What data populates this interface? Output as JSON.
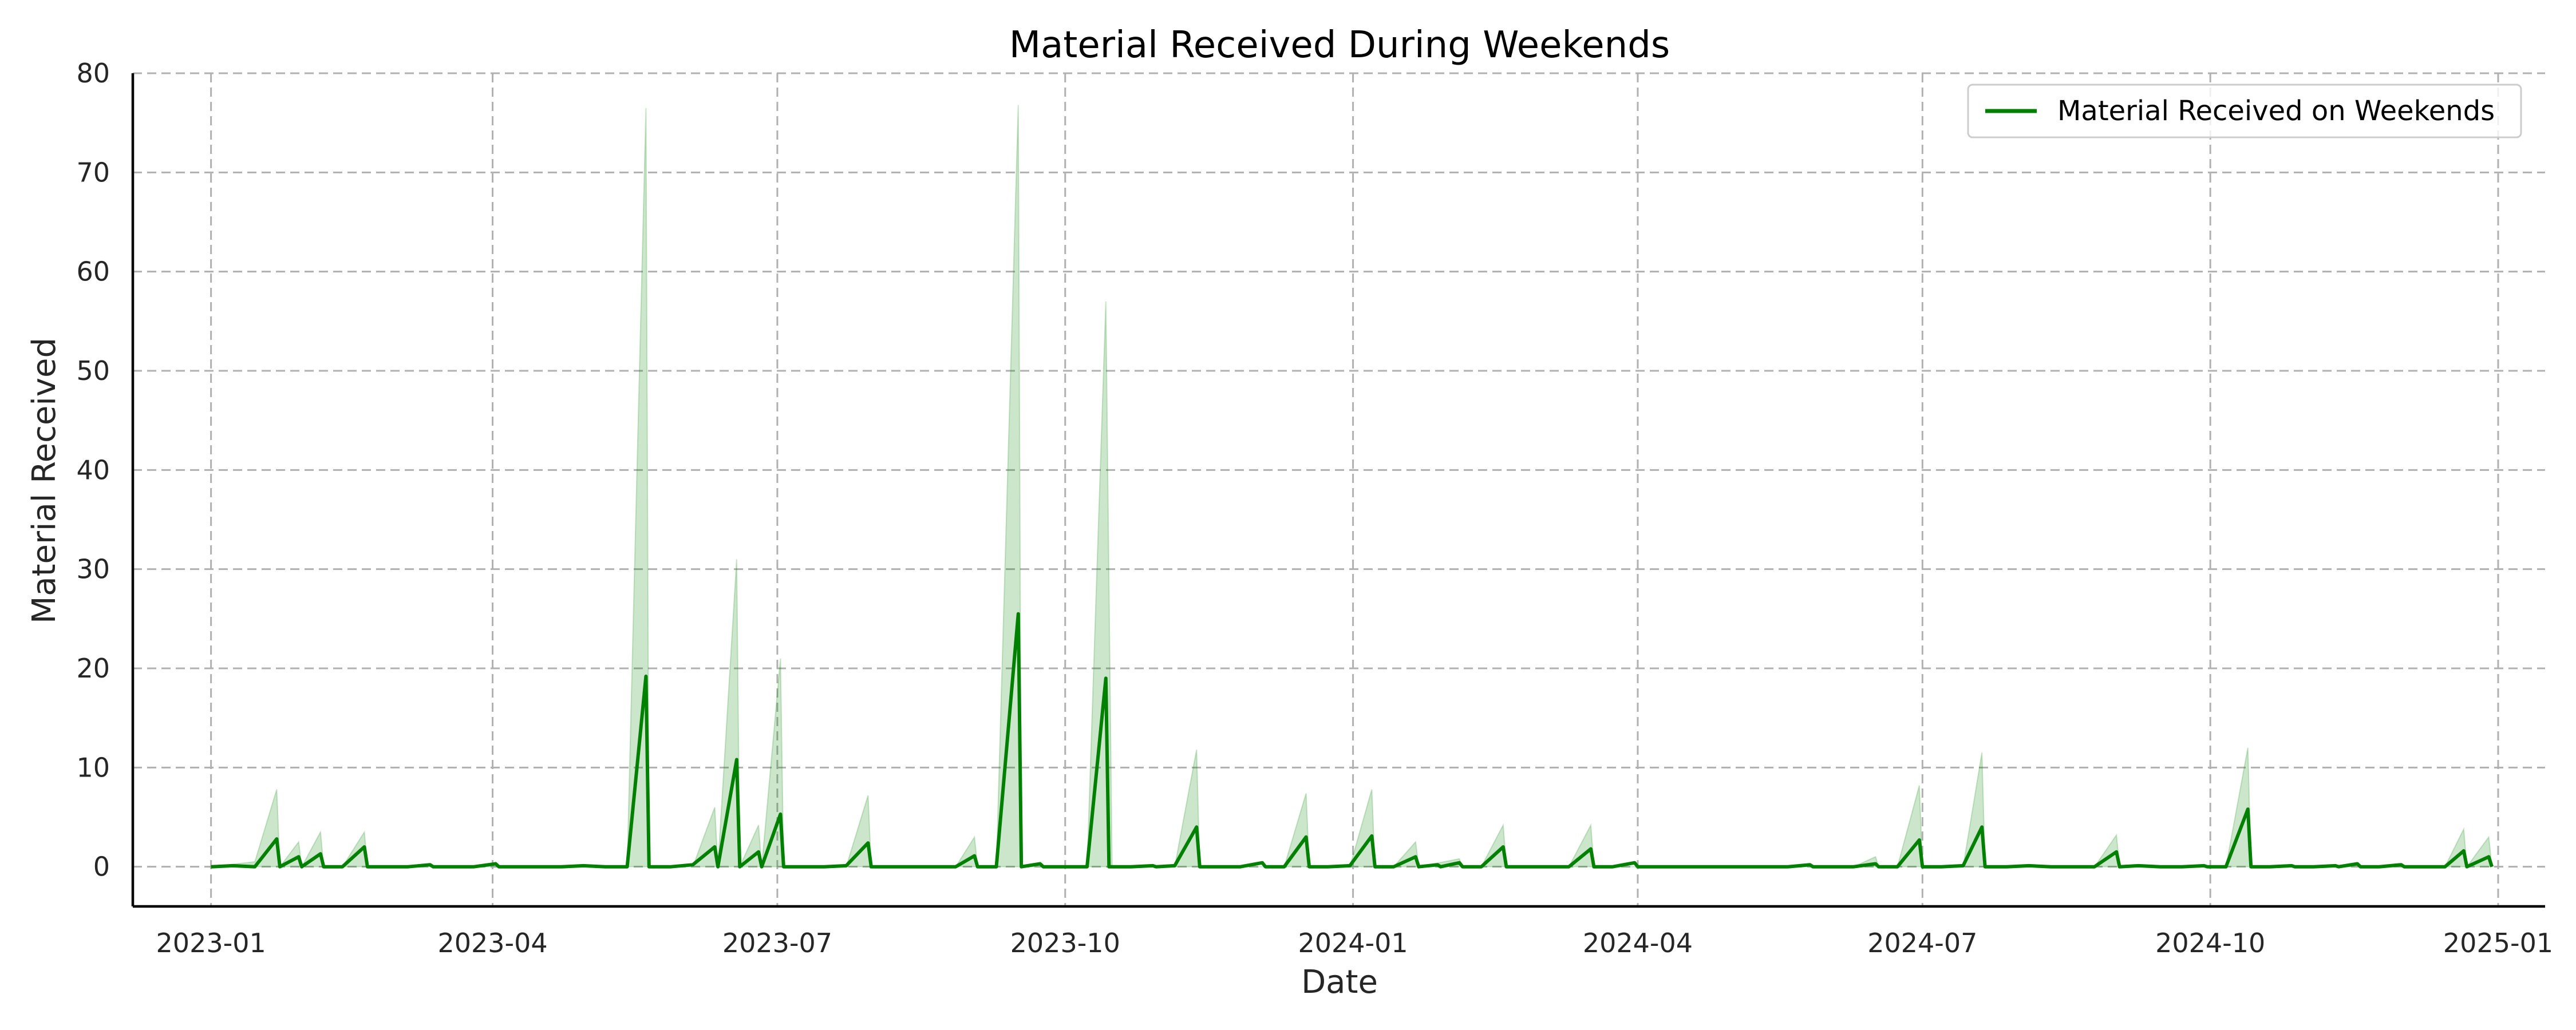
{
  "chart_data": {
    "type": "line",
    "title": "Material Received During Weekends",
    "xlabel": "Date",
    "ylabel": "Material Received",
    "xlim": [
      "2022-12-07",
      "2025-01-16"
    ],
    "ylim": [
      -4,
      80
    ],
    "x_ticks": [
      "2023-01",
      "2023-04",
      "2023-07",
      "2023-10",
      "2024-01",
      "2024-04",
      "2024-07",
      "2024-10",
      "2025-01"
    ],
    "y_ticks": [
      0,
      10,
      20,
      30,
      40,
      50,
      60,
      70,
      80
    ],
    "grid": true,
    "legend": {
      "position": "top-right"
    },
    "colors": {
      "line": "#008000",
      "band": "#008000"
    },
    "series": [
      {
        "name": "Material Received on Weekends",
        "points": [
          [
            "2023-01-01",
            0
          ],
          [
            "2023-01-08",
            0.1
          ],
          [
            "2023-01-15",
            0
          ],
          [
            "2023-01-22",
            2.8
          ],
          [
            "2023-01-23",
            0
          ],
          [
            "2023-01-29",
            1.0
          ],
          [
            "2023-01-30",
            0
          ],
          [
            "2023-02-05",
            1.3
          ],
          [
            "2023-02-06",
            0
          ],
          [
            "2023-02-12",
            0
          ],
          [
            "2023-02-19",
            2.0
          ],
          [
            "2023-02-20",
            0
          ],
          [
            "2023-02-26",
            0
          ],
          [
            "2023-03-05",
            0
          ],
          [
            "2023-03-12",
            0.2
          ],
          [
            "2023-03-13",
            0
          ],
          [
            "2023-03-19",
            0
          ],
          [
            "2023-03-26",
            0
          ],
          [
            "2023-04-02",
            0.3
          ],
          [
            "2023-04-03",
            0
          ],
          [
            "2023-04-09",
            0
          ],
          [
            "2023-04-16",
            0
          ],
          [
            "2023-04-23",
            0
          ],
          [
            "2023-04-30",
            0.1
          ],
          [
            "2023-05-07",
            0
          ],
          [
            "2023-05-14",
            0
          ],
          [
            "2023-05-20",
            19.2
          ],
          [
            "2023-05-21",
            0
          ],
          [
            "2023-05-28",
            0
          ],
          [
            "2023-06-04",
            0.2
          ],
          [
            "2023-06-11",
            2.0
          ],
          [
            "2023-06-12",
            0
          ],
          [
            "2023-06-18",
            10.8
          ],
          [
            "2023-06-19",
            0
          ],
          [
            "2023-06-25",
            1.5
          ],
          [
            "2023-06-26",
            0
          ],
          [
            "2023-07-02",
            5.3
          ],
          [
            "2023-07-03",
            0
          ],
          [
            "2023-07-09",
            0
          ],
          [
            "2023-07-16",
            0
          ],
          [
            "2023-07-23",
            0.1
          ],
          [
            "2023-07-30",
            2.4
          ],
          [
            "2023-07-31",
            0
          ],
          [
            "2023-08-06",
            0
          ],
          [
            "2023-08-13",
            0
          ],
          [
            "2023-08-20",
            0
          ],
          [
            "2023-08-27",
            0
          ],
          [
            "2023-09-02",
            1.1
          ],
          [
            "2023-09-03",
            0
          ],
          [
            "2023-09-09",
            0
          ],
          [
            "2023-09-16",
            25.5
          ],
          [
            "2023-09-17",
            0
          ],
          [
            "2023-09-23",
            0.3
          ],
          [
            "2023-09-24",
            0
          ],
          [
            "2023-10-01",
            0
          ],
          [
            "2023-10-08",
            0
          ],
          [
            "2023-10-15",
            0
          ],
          [
            "2023-10-14",
            19.0
          ],
          [
            "2023-10-16",
            0
          ],
          [
            "2023-10-22",
            0
          ],
          [
            "2023-10-29",
            0.1
          ],
          [
            "2023-10-30",
            0
          ],
          [
            "2023-11-05",
            0.1
          ],
          [
            "2023-11-12",
            4.0
          ],
          [
            "2023-11-13",
            0
          ],
          [
            "2023-11-19",
            0
          ],
          [
            "2023-11-26",
            0
          ],
          [
            "2023-12-03",
            0.4
          ],
          [
            "2023-12-04",
            0
          ],
          [
            "2023-12-10",
            0
          ],
          [
            "2023-12-17",
            3.0
          ],
          [
            "2023-12-18",
            0
          ],
          [
            "2023-12-24",
            0
          ],
          [
            "2023-12-31",
            0.1
          ],
          [
            "2024-01-07",
            3.1
          ],
          [
            "2024-01-08",
            0
          ],
          [
            "2024-01-14",
            0
          ],
          [
            "2024-01-21",
            1.0
          ],
          [
            "2024-01-22",
            0
          ],
          [
            "2024-01-28",
            0.2
          ],
          [
            "2024-01-29",
            0
          ],
          [
            "2024-02-04",
            0.4
          ],
          [
            "2024-02-05",
            0
          ],
          [
            "2024-02-11",
            0
          ],
          [
            "2024-02-18",
            2.0
          ],
          [
            "2024-02-19",
            0
          ],
          [
            "2024-02-25",
            0
          ],
          [
            "2024-03-03",
            0
          ],
          [
            "2024-03-10",
            0
          ],
          [
            "2024-03-17",
            1.8
          ],
          [
            "2024-03-18",
            0
          ],
          [
            "2024-03-24",
            0
          ],
          [
            "2024-03-31",
            0.4
          ],
          [
            "2024-04-01",
            0
          ],
          [
            "2024-04-07",
            0
          ],
          [
            "2024-04-14",
            0
          ],
          [
            "2024-04-21",
            0
          ],
          [
            "2024-04-28",
            0
          ],
          [
            "2024-05-05",
            0
          ],
          [
            "2024-05-12",
            0
          ],
          [
            "2024-05-19",
            0
          ],
          [
            "2024-05-26",
            0.2
          ],
          [
            "2024-05-27",
            0
          ],
          [
            "2024-06-02",
            0
          ],
          [
            "2024-06-09",
            0
          ],
          [
            "2024-06-16",
            0.3
          ],
          [
            "2024-06-17",
            0
          ],
          [
            "2024-06-23",
            0
          ],
          [
            "2024-06-30",
            2.7
          ],
          [
            "2024-07-01",
            0
          ],
          [
            "2024-07-07",
            0
          ],
          [
            "2024-07-14",
            0.1
          ],
          [
            "2024-07-20",
            4.0
          ],
          [
            "2024-07-21",
            0
          ],
          [
            "2024-07-28",
            0
          ],
          [
            "2024-08-04",
            0.1
          ],
          [
            "2024-08-11",
            0
          ],
          [
            "2024-08-18",
            0
          ],
          [
            "2024-08-25",
            0
          ],
          [
            "2024-09-01",
            1.5
          ],
          [
            "2024-09-02",
            0
          ],
          [
            "2024-09-08",
            0.1
          ],
          [
            "2024-09-15",
            0
          ],
          [
            "2024-09-22",
            0
          ],
          [
            "2024-09-29",
            0.1
          ],
          [
            "2024-09-30",
            0
          ],
          [
            "2024-10-06",
            0
          ],
          [
            "2024-10-13",
            5.8
          ],
          [
            "2024-10-14",
            0
          ],
          [
            "2024-10-20",
            0
          ],
          [
            "2024-10-27",
            0.1
          ],
          [
            "2024-10-28",
            0
          ],
          [
            "2024-11-03",
            0
          ],
          [
            "2024-11-10",
            0.1
          ],
          [
            "2024-11-11",
            0
          ],
          [
            "2024-11-17",
            0.3
          ],
          [
            "2024-11-18",
            0
          ],
          [
            "2024-11-24",
            0
          ],
          [
            "2024-12-01",
            0.2
          ],
          [
            "2024-12-02",
            0
          ],
          [
            "2024-12-08",
            0
          ],
          [
            "2024-12-15",
            0
          ],
          [
            "2024-12-21",
            1.6
          ],
          [
            "2024-12-22",
            0
          ],
          [
            "2024-12-29",
            1.0
          ],
          [
            "2024-12-30",
            0
          ]
        ],
        "band_upper": [
          [
            "2023-01-01",
            0
          ],
          [
            "2023-01-15",
            0.5
          ],
          [
            "2023-01-22",
            7.8
          ],
          [
            "2023-01-23",
            0
          ],
          [
            "2023-01-29",
            2.5
          ],
          [
            "2023-01-30",
            0
          ],
          [
            "2023-02-05",
            3.5
          ],
          [
            "2023-02-06",
            0
          ],
          [
            "2023-02-12",
            0
          ],
          [
            "2023-02-19",
            3.5
          ],
          [
            "2023-02-20",
            0
          ],
          [
            "2023-05-14",
            0
          ],
          [
            "2023-05-20",
            76.5
          ],
          [
            "2023-05-21",
            0
          ],
          [
            "2023-06-04",
            0
          ],
          [
            "2023-06-11",
            6.0
          ],
          [
            "2023-06-12",
            0
          ],
          [
            "2023-06-18",
            31.0
          ],
          [
            "2023-06-19",
            0
          ],
          [
            "2023-06-25",
            4.2
          ],
          [
            "2023-06-26",
            0
          ],
          [
            "2023-07-02",
            21.0
          ],
          [
            "2023-07-03",
            0
          ],
          [
            "2023-07-23",
            0
          ],
          [
            "2023-07-30",
            7.2
          ],
          [
            "2023-07-31",
            0
          ],
          [
            "2023-08-27",
            0
          ],
          [
            "2023-09-02",
            3.0
          ],
          [
            "2023-09-03",
            0
          ],
          [
            "2023-09-09",
            0
          ],
          [
            "2023-09-16",
            76.8
          ],
          [
            "2023-09-17",
            0
          ],
          [
            "2023-10-08",
            0
          ],
          [
            "2023-10-14",
            57.0
          ],
          [
            "2023-10-16",
            0
          ],
          [
            "2023-11-05",
            0
          ],
          [
            "2023-11-12",
            11.8
          ],
          [
            "2023-11-13",
            0
          ],
          [
            "2023-12-10",
            0
          ],
          [
            "2023-12-17",
            7.4
          ],
          [
            "2023-12-18",
            0
          ],
          [
            "2023-12-31",
            0
          ],
          [
            "2024-01-07",
            7.8
          ],
          [
            "2024-01-08",
            0
          ],
          [
            "2024-01-14",
            0
          ],
          [
            "2024-01-21",
            2.5
          ],
          [
            "2024-01-22",
            0
          ],
          [
            "2024-02-04",
            0.8
          ],
          [
            "2024-02-05",
            0
          ],
          [
            "2024-02-11",
            0
          ],
          [
            "2024-02-18",
            4.2
          ],
          [
            "2024-02-19",
            0
          ],
          [
            "2024-03-10",
            0
          ],
          [
            "2024-03-17",
            4.2
          ],
          [
            "2024-03-18",
            0
          ],
          [
            "2024-06-09",
            0
          ],
          [
            "2024-06-16",
            1.0
          ],
          [
            "2024-06-17",
            0
          ],
          [
            "2024-06-23",
            0
          ],
          [
            "2024-06-30",
            8.2
          ],
          [
            "2024-07-01",
            0
          ],
          [
            "2024-07-14",
            0
          ],
          [
            "2024-07-20",
            11.5
          ],
          [
            "2024-07-21",
            0
          ],
          [
            "2024-08-25",
            0
          ],
          [
            "2024-09-01",
            3.2
          ],
          [
            "2024-09-02",
            0
          ],
          [
            "2024-10-06",
            0
          ],
          [
            "2024-10-13",
            12.0
          ],
          [
            "2024-10-14",
            0
          ],
          [
            "2024-12-15",
            0
          ],
          [
            "2024-12-21",
            3.8
          ],
          [
            "2024-12-22",
            0
          ],
          [
            "2024-12-29",
            3.0
          ],
          [
            "2024-12-30",
            0
          ]
        ]
      }
    ]
  }
}
